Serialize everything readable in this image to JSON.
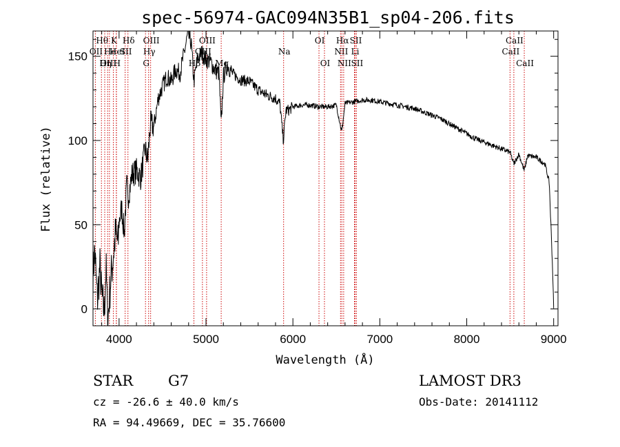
{
  "chart_data": {
    "type": "line",
    "title": "spec-56974-GAC094N35B1_sp04-206.fits",
    "xlabel": "Wavelength (Å)",
    "ylabel": "Flux (relative)",
    "xlim": [
      3700,
      9050
    ],
    "ylim": [
      -10,
      165
    ],
    "x_ticks": [
      4000,
      5000,
      6000,
      7000,
      8000,
      9000
    ],
    "y_ticks": [
      0,
      50,
      100,
      150
    ],
    "x_tick_labels": [
      "4000",
      "5000",
      "6000",
      "7000",
      "8000",
      "9000"
    ],
    "y_tick_labels": [
      "0",
      "50",
      "100",
      "150"
    ],
    "series": [
      {
        "name": "flux",
        "anchors": [
          [
            3700,
            20
          ],
          [
            3720,
            35
          ],
          [
            3750,
            5
          ],
          [
            3780,
            25
          ],
          [
            3800,
            8
          ],
          [
            3830,
            -2
          ],
          [
            3850,
            25
          ],
          [
            3870,
            -8
          ],
          [
            3900,
            15
          ],
          [
            3930,
            30
          ],
          [
            3960,
            45
          ],
          [
            3990,
            38
          ],
          [
            4000,
            52
          ],
          [
            4030,
            60
          ],
          [
            4060,
            45
          ],
          [
            4090,
            75
          ],
          [
            4100,
            65
          ],
          [
            4150,
            80
          ],
          [
            4200,
            82
          ],
          [
            4250,
            78
          ],
          [
            4300,
            95
          ],
          [
            4330,
            88
          ],
          [
            4360,
            110
          ],
          [
            4400,
            108
          ],
          [
            4450,
            125
          ],
          [
            4500,
            132
          ],
          [
            4550,
            138
          ],
          [
            4600,
            135
          ],
          [
            4650,
            142
          ],
          [
            4700,
            140
          ],
          [
            4750,
            152
          ],
          [
            4790,
            163
          ],
          [
            4830,
            158
          ],
          [
            4861,
            135
          ],
          [
            4900,
            148
          ],
          [
            4950,
            152
          ],
          [
            5000,
            148
          ],
          [
            5050,
            147
          ],
          [
            5100,
            142
          ],
          [
            5150,
            140
          ],
          [
            5175,
            108
          ],
          [
            5200,
            138
          ],
          [
            5250,
            145
          ],
          [
            5300,
            140
          ],
          [
            5400,
            136
          ],
          [
            5500,
            135
          ],
          [
            5600,
            130
          ],
          [
            5700,
            127
          ],
          [
            5800,
            125
          ],
          [
            5850,
            122
          ],
          [
            5890,
            100
          ],
          [
            5920,
            118
          ],
          [
            5950,
            118
          ],
          [
            6000,
            120
          ],
          [
            6100,
            121
          ],
          [
            6200,
            121
          ],
          [
            6300,
            120
          ],
          [
            6400,
            120
          ],
          [
            6500,
            121
          ],
          [
            6562,
            105
          ],
          [
            6600,
            122
          ],
          [
            6700,
            123
          ],
          [
            6800,
            124
          ],
          [
            6900,
            124
          ],
          [
            7000,
            123
          ],
          [
            7100,
            122
          ],
          [
            7200,
            121
          ],
          [
            7300,
            120
          ],
          [
            7400,
            119
          ],
          [
            7500,
            117
          ],
          [
            7600,
            115
          ],
          [
            7700,
            113
          ],
          [
            7800,
            110
          ],
          [
            7900,
            107
          ],
          [
            8000,
            104
          ],
          [
            8100,
            101
          ],
          [
            8200,
            99
          ],
          [
            8300,
            97
          ],
          [
            8400,
            95
          ],
          [
            8498,
            93
          ],
          [
            8542,
            86
          ],
          [
            8600,
            92
          ],
          [
            8662,
            82
          ],
          [
            8700,
            91
          ],
          [
            8800,
            90
          ],
          [
            8900,
            86
          ],
          [
            8950,
            75
          ],
          [
            8990,
            20
          ],
          [
            9000,
            0
          ]
        ]
      }
    ],
    "line_markers": [
      {
        "label": "Hθ",
        "wavelength": 3797,
        "row": 1
      },
      {
        "label": "OII",
        "wavelength": 3727,
        "row": 2
      },
      {
        "label": "OIII",
        "wavelength": 3868,
        "row": 3
      },
      {
        "label": "He",
        "wavelength": 3889,
        "row": 2
      },
      {
        "label": "Hη",
        "wavelength": 3835,
        "row": 3
      },
      {
        "label": "K",
        "wavelength": 3934,
        "row": 1
      },
      {
        "label": "HeI",
        "wavelength": 3970,
        "row": 2
      },
      {
        "label": "H",
        "wavelength": 3968,
        "row": 3
      },
      {
        "label": "SII",
        "wavelength": 4070,
        "row": 2
      },
      {
        "label": "Hδ",
        "wavelength": 4102,
        "row": 1
      },
      {
        "label": "OIII",
        "wavelength": 4363,
        "row": 1
      },
      {
        "label": "Hγ",
        "wavelength": 4340,
        "row": 2
      },
      {
        "label": "G",
        "wavelength": 4304,
        "row": 3
      },
      {
        "label": "OIII",
        "wavelength": 5007,
        "row": 1
      },
      {
        "label": "OIII",
        "wavelength": 4959,
        "row": 2
      },
      {
        "label": "Hβ",
        "wavelength": 4861,
        "row": 3
      },
      {
        "label": "Mg",
        "wavelength": 5175,
        "row": 3
      },
      {
        "label": "Na",
        "wavelength": 5893,
        "row": 2
      },
      {
        "label": "OI",
        "wavelength": 6300,
        "row": 1
      },
      {
        "label": "OI",
        "wavelength": 6363,
        "row": 3
      },
      {
        "label": "Hα",
        "wavelength": 6563,
        "row": 1
      },
      {
        "label": "NII",
        "wavelength": 6548,
        "row": 2
      },
      {
        "label": "NII",
        "wavelength": 6584,
        "row": 3
      },
      {
        "label": "SII",
        "wavelength": 6716,
        "row": 1
      },
      {
        "label": "Li",
        "wavelength": 6708,
        "row": 2
      },
      {
        "label": "SII",
        "wavelength": 6731,
        "row": 3
      },
      {
        "label": "CaII",
        "wavelength": 8542,
        "row": 1
      },
      {
        "label": "CaII",
        "wavelength": 8498,
        "row": 2
      },
      {
        "label": "CaII",
        "wavelength": 8662,
        "row": 3
      }
    ],
    "line_color": "#000000",
    "marker_color": "#cc0000"
  },
  "info": {
    "object_class": "STAR",
    "subclass": "G7",
    "survey": "LAMOST DR3",
    "redshift": "cz = -26.6 ± 40.0 km/s",
    "obs_date": "Obs-Date: 20141112",
    "coords": "RA =  94.49669, DEC =  35.76600"
  }
}
